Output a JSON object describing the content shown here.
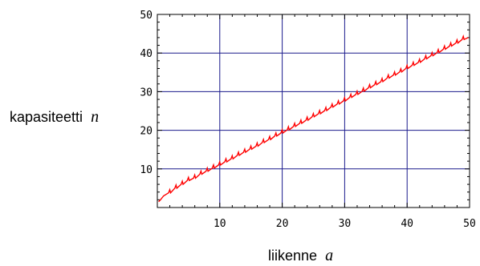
{
  "chart_data": {
    "type": "line",
    "title": "",
    "xlabel": {
      "text": "liikenne",
      "var": "a"
    },
    "ylabel": {
      "text": "kapasiteetti",
      "var": "n"
    },
    "xlim": [
      0,
      50
    ],
    "ylim": [
      0,
      50
    ],
    "x_ticks": [
      "10",
      "20",
      "30",
      "40",
      "50"
    ],
    "y_ticks": [
      "10",
      "20",
      "30",
      "40",
      "50"
    ],
    "grid": true,
    "colors": {
      "series": "#ff0000",
      "grid": "#1a1a8c",
      "frame": "#000000"
    },
    "series": [
      {
        "points": [
          [
            0.2,
            1.5
          ],
          [
            0.5,
            2.0
          ],
          [
            1.0,
            3.0
          ],
          [
            1.8,
            3.8
          ],
          [
            2.8,
            5.0
          ],
          [
            3.8,
            6.0
          ],
          [
            4.8,
            7.0
          ],
          [
            5.8,
            7.6
          ],
          [
            6.8,
            8.6
          ],
          [
            7.8,
            9.4
          ],
          [
            8.8,
            10.2
          ],
          [
            9.8,
            11.0
          ],
          [
            10.8,
            11.8
          ],
          [
            11.8,
            12.6
          ],
          [
            12.8,
            13.5
          ],
          [
            13.8,
            14.3
          ],
          [
            14.8,
            15.1
          ],
          [
            15.8,
            15.9
          ],
          [
            16.8,
            16.8
          ],
          [
            17.8,
            17.6
          ],
          [
            18.8,
            18.5
          ],
          [
            19.8,
            19.3
          ],
          [
            20.8,
            20.1
          ],
          [
            21.8,
            21.0
          ],
          [
            22.8,
            21.8
          ],
          [
            23.8,
            22.6
          ],
          [
            24.8,
            23.5
          ],
          [
            25.8,
            24.3
          ],
          [
            26.8,
            25.1
          ],
          [
            27.8,
            26.0
          ],
          [
            28.8,
            26.8
          ],
          [
            29.8,
            27.6
          ],
          [
            30.8,
            28.5
          ],
          [
            31.8,
            29.3
          ],
          [
            32.8,
            30.1
          ],
          [
            33.8,
            31.0
          ],
          [
            34.8,
            31.8
          ],
          [
            35.8,
            32.6
          ],
          [
            36.8,
            33.5
          ],
          [
            37.8,
            34.3
          ],
          [
            38.8,
            35.1
          ],
          [
            39.8,
            36.0
          ],
          [
            40.8,
            36.8
          ],
          [
            41.8,
            37.6
          ],
          [
            42.8,
            38.5
          ],
          [
            43.8,
            39.3
          ],
          [
            44.8,
            40.1
          ],
          [
            45.8,
            41.0
          ],
          [
            46.8,
            41.8
          ],
          [
            47.8,
            42.6
          ],
          [
            48.8,
            43.5
          ],
          [
            49.8,
            44.0
          ]
        ]
      }
    ]
  }
}
